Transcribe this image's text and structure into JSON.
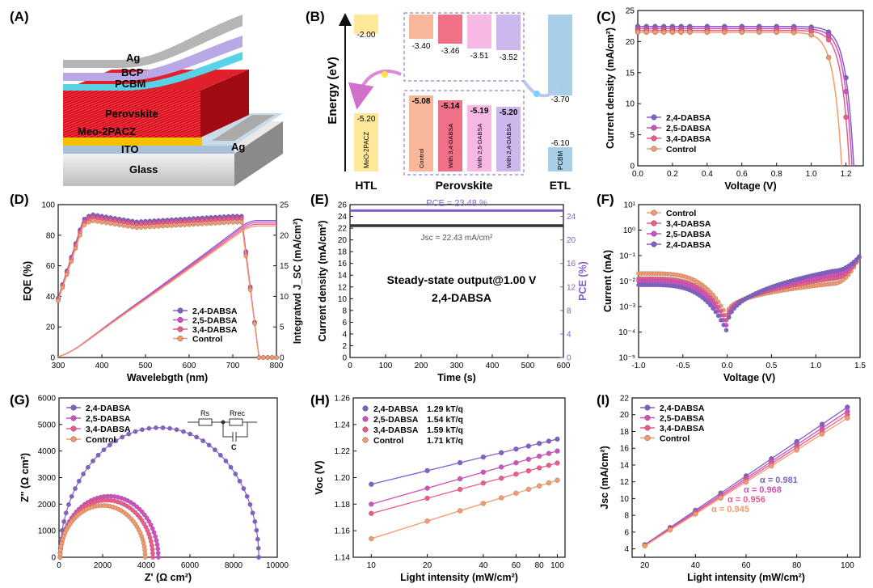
{
  "colors": {
    "DABSA24": "#8060c8",
    "DABSA25": "#d050c0",
    "DABSA34": "#f05a8a",
    "Control": "#f59a6a",
    "black": "#222222"
  },
  "panel_letters": [
    "(A)",
    "(B)",
    "(C)",
    "(D)",
    "(E)",
    "(F)",
    "(G)",
    "(H)",
    "(I)"
  ],
  "panel_A": {
    "layers": [
      "Ag",
      "BCP",
      "PCBM",
      "Perovskite",
      "Meo-2PACZ",
      "Ag",
      "ITO",
      "Glass"
    ]
  },
  "chart_data": [
    {
      "panel": "B",
      "type": "diagram",
      "ylabel": "Energy (eV)",
      "groups": [
        "HTL",
        "Perovskite",
        "ETL"
      ],
      "htl": {
        "label": "MeO-2PACZ",
        "top": "-2.00",
        "bottom": "-5.20"
      },
      "perovskite": [
        {
          "label": "Control",
          "cb": "-3.40",
          "vb": "-5.08"
        },
        {
          "label": "With 3,4-DABSA",
          "cb": "-3.46",
          "vb": "-5.14"
        },
        {
          "label": "With 2,5-DABSA",
          "cb": "-3.51",
          "vb": "-5.19"
        },
        {
          "label": "With 2,4-DABSA",
          "cb": "-3.52",
          "vb": "-5.20"
        }
      ],
      "etl": {
        "label": "PCBM",
        "top": "-3.70",
        "bottom": "-6.10"
      }
    },
    {
      "panel": "C",
      "type": "line",
      "xlabel": "Voltage (V)",
      "ylabel": "Current density (mA/cm²)",
      "xlim": [
        0.0,
        1.3
      ],
      "ylim": [
        0,
        25
      ],
      "xticks": [
        "0.0",
        "0.2",
        "0.4",
        "0.6",
        "0.8",
        "1.0",
        "1.2"
      ],
      "yticks": [
        "0",
        "5",
        "10",
        "15",
        "20",
        "25"
      ],
      "series": [
        {
          "name": "2,4-DABSA",
          "key": "DABSA24",
          "jsc": 22.43,
          "voc": 1.245
        },
        {
          "name": "2,5-DABSA",
          "key": "DABSA25",
          "jsc": 22.1,
          "voc": 1.235
        },
        {
          "name": "3,4-DABSA",
          "key": "DABSA34",
          "jsc": 21.8,
          "voc": 1.22
        },
        {
          "name": "Control",
          "key": "Control",
          "jsc": 21.5,
          "voc": 1.175
        }
      ]
    },
    {
      "panel": "D",
      "type": "line",
      "xlabel": "Wavelebgth (nm)",
      "ylabel": "EQE (%)",
      "y2label": "Integratwd J_SC (mA/cm²)",
      "xlim": [
        300,
        800
      ],
      "ylim": [
        0,
        100
      ],
      "y2lim": [
        0,
        25
      ],
      "xticks": [
        "300",
        "400",
        "500",
        "600",
        "700",
        "800"
      ],
      "yticks": [
        "0",
        "20",
        "40",
        "60",
        "80",
        "100"
      ],
      "y2ticks": [
        "0",
        "5",
        "10",
        "15",
        "20",
        "25"
      ],
      "series": [
        {
          "name": "2,4-DABSA",
          "key": "DABSA24",
          "plateau": 92.5,
          "jsc_end": 22.4
        },
        {
          "name": "2,5-DABSA",
          "key": "DABSA25",
          "plateau": 91.5,
          "jsc_end": 22.1
        },
        {
          "name": "3,4-DABSA",
          "key": "DABSA34",
          "plateau": 90.5,
          "jsc_end": 21.8
        },
        {
          "name": "Control",
          "key": "Control",
          "plateau": 88.5,
          "jsc_end": 21.5
        }
      ]
    },
    {
      "panel": "E",
      "type": "line",
      "xlabel": "Time (s)",
      "ylabel": "Current density (mA/cm²)",
      "y2label": "PCE (%)",
      "xlim": [
        0,
        600
      ],
      "ylim": [
        0,
        26
      ],
      "y2lim": [
        0,
        26
      ],
      "xticks": [
        "0",
        "100",
        "200",
        "300",
        "400",
        "500",
        "600"
      ],
      "yticks": [
        "0",
        "2",
        "4",
        "6",
        "8",
        "10",
        "12",
        "14",
        "16",
        "18",
        "20",
        "22",
        "24",
        "26"
      ],
      "y2ticks": [
        "0",
        "4",
        "8",
        "12",
        "16",
        "20",
        "24"
      ],
      "pce_value": 23.48,
      "jsc_value": 22.43,
      "pce_label": "PCE = 23.48 %",
      "jsc_label": "Jsc = 22.43 mA/cm²",
      "annotation1": "Steady-state output@1.00 V",
      "annotation2": "2,4-DABSA"
    },
    {
      "panel": "F",
      "type": "scatter",
      "xlabel": "Voltage (V)",
      "ylabel": "Current (mA)",
      "xlim": [
        -1.0,
        1.5
      ],
      "ylim_log": [
        -5,
        1
      ],
      "xticks": [
        "-1.0",
        "-0.5",
        "0.0",
        "0.5",
        "1.0",
        "1.5"
      ],
      "yticks": [
        "10⁻⁵",
        "10⁻⁴",
        "10⁻³",
        "10⁻²",
        "10⁻¹",
        "10⁰",
        "10¹"
      ],
      "series": [
        {
          "name": "Control",
          "key": "Control",
          "left": -1.7,
          "min": -3.4,
          "right": -1.5
        },
        {
          "name": "3,4-DABSA",
          "key": "DABSA34",
          "left": -1.9,
          "min": -3.6,
          "right": -1.3
        },
        {
          "name": "2,5-DABSA",
          "key": "DABSA25",
          "left": -2.0,
          "min": -3.8,
          "right": -1.15
        },
        {
          "name": "2,4-DABSA",
          "key": "DABSA24",
          "left": -2.15,
          "min": -4.0,
          "right": -1.0
        }
      ]
    },
    {
      "panel": "G",
      "type": "scatter",
      "xlabel": "Z' (Ω cm²)",
      "ylabel": "Z'' (Ω cm²)",
      "xlim": [
        0,
        10000
      ],
      "ylim": [
        0,
        6000
      ],
      "xticks": [
        "0",
        "2000",
        "4000",
        "6000",
        "8000",
        "10000"
      ],
      "yticks": [
        "0",
        "1000",
        "2000",
        "3000",
        "4000",
        "5000",
        "6000"
      ],
      "circuit_labels": [
        "Rs",
        "Rrec",
        "C"
      ],
      "series": [
        {
          "name": "2,4-DABSA",
          "key": "DABSA24",
          "rs": 50,
          "rrec": 9100,
          "peak": 4880
        },
        {
          "name": "2,5-DABSA",
          "key": "DABSA25",
          "rs": 50,
          "rrec": 4500,
          "peak": 2300
        },
        {
          "name": "3,4-DABSA",
          "key": "DABSA34",
          "rs": 50,
          "rrec": 4250,
          "peak": 2150
        },
        {
          "name": "Control",
          "key": "Control",
          "rs": 50,
          "rrec": 3900,
          "peak": 1950
        }
      ]
    },
    {
      "panel": "H",
      "type": "scatter",
      "xlabel": "Light intensity (mW/cm²)",
      "ylabel": "Voc (V)",
      "xscale": "log",
      "xlim": [
        8,
        110
      ],
      "ylim": [
        1.14,
        1.26
      ],
      "xticks": [
        "10",
        "20",
        "40",
        "60",
        "80",
        "100"
      ],
      "yticks": [
        "1.14",
        "1.16",
        "1.18",
        "1.20",
        "1.22",
        "1.24",
        "1.26"
      ],
      "x": [
        10,
        20,
        30,
        40,
        50,
        60,
        70,
        80,
        90,
        100
      ],
      "series": [
        {
          "name": "2,4-DABSA",
          "slope": "1.29 kT/q",
          "key": "DABSA24",
          "v10": 1.195,
          "v100": 1.229
        },
        {
          "name": "2,5-DABSA",
          "slope": "1.54 kT/q",
          "key": "DABSA25",
          "v10": 1.18,
          "v100": 1.22
        },
        {
          "name": "3,4-DABSA",
          "slope": "1.59 kT/q",
          "key": "DABSA34",
          "v10": 1.173,
          "v100": 1.211
        },
        {
          "name": "Control",
          "slope": "1.71 kT/q",
          "key": "Control",
          "v10": 1.154,
          "v100": 1.198
        }
      ]
    },
    {
      "panel": "I",
      "type": "scatter",
      "xlabel": "Light intensity (mW/cm²)",
      "ylabel": "Jsc (mA/cm²)",
      "xlim": [
        15,
        105
      ],
      "ylim": [
        3,
        22
      ],
      "xticks": [
        "20",
        "40",
        "60",
        "80",
        "100"
      ],
      "yticks": [
        "4",
        "6",
        "8",
        "10",
        "12",
        "14",
        "16",
        "18",
        "20",
        "22"
      ],
      "x": [
        20,
        30,
        40,
        50,
        60,
        70,
        80,
        90,
        100
      ],
      "series": [
        {
          "name": "2,4-DABSA",
          "key": "DABSA24",
          "alpha": "α = 0.981",
          "j20": 4.5,
          "j100": 20.9
        },
        {
          "name": "2,5-DABSA",
          "key": "DABSA25",
          "alpha": "α = 0.968",
          "j20": 4.45,
          "j100": 20.4
        },
        {
          "name": "3,4-DABSA",
          "key": "DABSA34",
          "alpha": "α = 0.956",
          "j20": 4.4,
          "j100": 20.0
        },
        {
          "name": "Control",
          "key": "Control",
          "alpha": "α = 0.945",
          "j20": 4.35,
          "j100": 19.6
        }
      ]
    }
  ]
}
